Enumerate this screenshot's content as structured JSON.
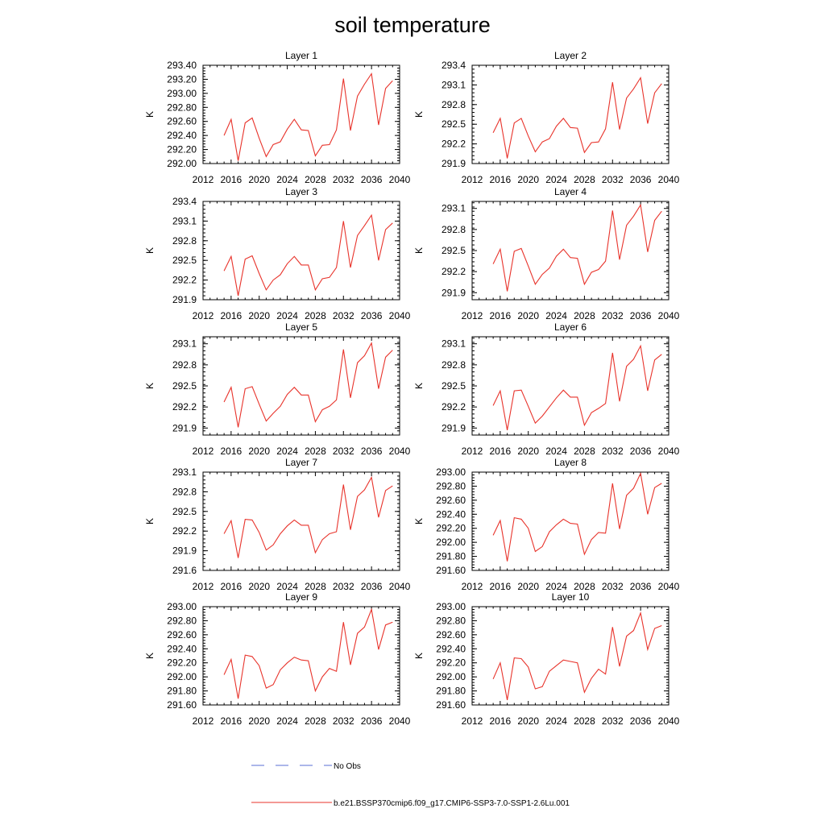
{
  "figure": {
    "title": "soil temperature",
    "legend": [
      {
        "label": "No Obs",
        "color": "#5a6fd6",
        "dash": "dashed"
      },
      {
        "label": "b.e21.BSSP370cmip6.f09_g17.CMIP6-SSP3-7.0-SSP1-2.6Lu.001",
        "color": "#e8332b",
        "dash": "solid"
      }
    ]
  },
  "chart_data": [
    {
      "type": "line",
      "title": "Layer 1",
      "ylabel": "K",
      "xlim": [
        2012,
        2040
      ],
      "ylim": [
        292.0,
        293.4
      ],
      "xticks": [
        2012,
        2016,
        2020,
        2024,
        2028,
        2032,
        2036,
        2040
      ],
      "yticks": [
        "292.00",
        "292.20",
        "292.40",
        "292.60",
        "292.80",
        "293.00",
        "293.20",
        "293.40"
      ],
      "series": [
        {
          "name": "b.e21.BSSP370cmip6.f09_g17.CMIP6-SSP3-7.0-SSP1-2.6Lu.001",
          "x": [
            2015,
            2016,
            2017,
            2018,
            2019,
            2020,
            2021,
            2022,
            2023,
            2024,
            2025,
            2026,
            2027,
            2028,
            2029,
            2030,
            2031,
            2032,
            2033,
            2034,
            2035,
            2036,
            2037,
            2038,
            2039
          ],
          "values": [
            292.4,
            292.63,
            292.04,
            292.58,
            292.65,
            292.36,
            292.1,
            292.27,
            292.31,
            292.49,
            292.63,
            292.48,
            292.47,
            292.11,
            292.26,
            292.27,
            292.48,
            293.21,
            292.47,
            292.96,
            293.13,
            293.28,
            292.55,
            293.07,
            293.18
          ]
        }
      ]
    },
    {
      "type": "line",
      "title": "Layer 2",
      "ylabel": "K",
      "xlim": [
        2012,
        2040
      ],
      "ylim": [
        291.9,
        293.4
      ],
      "xticks": [
        2012,
        2016,
        2020,
        2024,
        2028,
        2032,
        2036,
        2040
      ],
      "yticks": [
        "291.9",
        "292.2",
        "292.5",
        "292.8",
        "293.1",
        "293.4"
      ],
      "series": [
        {
          "name": "b.e21.BSSP370cmip6.f09_g17.CMIP6-SSP3-7.0-SSP1-2.6Lu.001",
          "x": [
            2015,
            2016,
            2017,
            2018,
            2019,
            2020,
            2021,
            2022,
            2023,
            2024,
            2025,
            2026,
            2027,
            2028,
            2029,
            2030,
            2031,
            2032,
            2033,
            2034,
            2035,
            2036,
            2037,
            2038,
            2039
          ],
          "values": [
            292.37,
            292.59,
            291.98,
            292.52,
            292.59,
            292.32,
            292.08,
            292.23,
            292.28,
            292.47,
            292.59,
            292.45,
            292.44,
            292.07,
            292.22,
            292.23,
            292.43,
            293.14,
            292.42,
            292.9,
            293.04,
            293.21,
            292.51,
            292.98,
            293.12
          ]
        }
      ]
    },
    {
      "type": "line",
      "title": "Layer 3",
      "ylabel": "K",
      "xlim": [
        2012,
        2040
      ],
      "ylim": [
        291.9,
        293.4
      ],
      "xticks": [
        2012,
        2016,
        2020,
        2024,
        2028,
        2032,
        2036,
        2040
      ],
      "yticks": [
        "291.9",
        "292.2",
        "292.5",
        "292.8",
        "293.1",
        "293.4"
      ],
      "series": [
        {
          "name": "b.e21.BSSP370cmip6.f09_g17.CMIP6-SSP3-7.0-SSP1-2.6Lu.001",
          "x": [
            2015,
            2016,
            2017,
            2018,
            2019,
            2020,
            2021,
            2022,
            2023,
            2024,
            2025,
            2026,
            2027,
            2028,
            2029,
            2030,
            2031,
            2032,
            2033,
            2034,
            2035,
            2036,
            2037,
            2038,
            2039
          ],
          "values": [
            292.34,
            292.56,
            291.96,
            292.52,
            292.57,
            292.3,
            292.05,
            292.2,
            292.28,
            292.45,
            292.56,
            292.43,
            292.43,
            292.05,
            292.22,
            292.24,
            292.39,
            293.1,
            292.39,
            292.88,
            293.03,
            293.19,
            292.5,
            292.97,
            293.07
          ]
        }
      ]
    },
    {
      "type": "line",
      "title": "Layer 4",
      "ylabel": "K",
      "xlim": [
        2012,
        2040
      ],
      "ylim": [
        291.8,
        293.2
      ],
      "xticks": [
        2012,
        2016,
        2020,
        2024,
        2028,
        2032,
        2036,
        2040
      ],
      "yticks": [
        "291.9",
        "292.2",
        "292.5",
        "292.8",
        "293.1"
      ],
      "series": [
        {
          "name": "b.e21.BSSP370cmip6.f09_g17.CMIP6-SSP3-7.0-SSP1-2.6Lu.001",
          "x": [
            2015,
            2016,
            2017,
            2018,
            2019,
            2020,
            2021,
            2022,
            2023,
            2024,
            2025,
            2026,
            2027,
            2028,
            2029,
            2030,
            2031,
            2032,
            2033,
            2034,
            2035,
            2036,
            2037,
            2038,
            2039
          ],
          "values": [
            292.31,
            292.52,
            291.92,
            292.49,
            292.53,
            292.28,
            292.02,
            292.16,
            292.25,
            292.42,
            292.52,
            292.4,
            292.39,
            292.02,
            292.19,
            292.23,
            292.35,
            293.07,
            292.37,
            292.86,
            292.99,
            293.15,
            292.48,
            292.93,
            293.06
          ]
        }
      ]
    },
    {
      "type": "line",
      "title": "Layer 5",
      "ylabel": "K",
      "xlim": [
        2012,
        2040
      ],
      "ylim": [
        291.8,
        293.2
      ],
      "xticks": [
        2012,
        2016,
        2020,
        2024,
        2028,
        2032,
        2036,
        2040
      ],
      "yticks": [
        "291.9",
        "292.2",
        "292.5",
        "292.8",
        "293.1"
      ],
      "series": [
        {
          "name": "b.e21.BSSP370cmip6.f09_g17.CMIP6-SSP3-7.0-SSP1-2.6Lu.001",
          "x": [
            2015,
            2016,
            2017,
            2018,
            2019,
            2020,
            2021,
            2022,
            2023,
            2024,
            2025,
            2026,
            2027,
            2028,
            2029,
            2030,
            2031,
            2032,
            2033,
            2034,
            2035,
            2036,
            2037,
            2038,
            2039
          ],
          "values": [
            292.27,
            292.48,
            291.91,
            292.46,
            292.49,
            292.24,
            292.0,
            292.11,
            292.21,
            292.38,
            292.48,
            292.37,
            292.37,
            291.99,
            292.16,
            292.21,
            292.3,
            293.02,
            292.33,
            292.83,
            292.93,
            293.11,
            292.46,
            292.91,
            293.01
          ]
        }
      ]
    },
    {
      "type": "line",
      "title": "Layer 6",
      "ylabel": "K",
      "xlim": [
        2012,
        2040
      ],
      "ylim": [
        291.8,
        293.2
      ],
      "xticks": [
        2012,
        2016,
        2020,
        2024,
        2028,
        2032,
        2036,
        2040
      ],
      "yticks": [
        "291.9",
        "292.2",
        "292.5",
        "292.8",
        "293.1"
      ],
      "series": [
        {
          "name": "b.e21.BSSP370cmip6.f09_g17.CMIP6-SSP3-7.0-SSP1-2.6Lu.001",
          "x": [
            2015,
            2016,
            2017,
            2018,
            2019,
            2020,
            2021,
            2022,
            2023,
            2024,
            2025,
            2026,
            2027,
            2028,
            2029,
            2030,
            2031,
            2032,
            2033,
            2034,
            2035,
            2036,
            2037,
            2038,
            2039
          ],
          "values": [
            292.22,
            292.43,
            291.87,
            292.43,
            292.44,
            292.21,
            291.97,
            292.07,
            292.2,
            292.33,
            292.44,
            292.34,
            292.34,
            291.94,
            292.12,
            292.18,
            292.25,
            292.97,
            292.28,
            292.78,
            292.88,
            293.07,
            292.43,
            292.87,
            292.95
          ]
        }
      ]
    },
    {
      "type": "line",
      "title": "Layer 7",
      "ylabel": "K",
      "xlim": [
        2012,
        2040
      ],
      "ylim": [
        291.6,
        293.1
      ],
      "xticks": [
        2012,
        2016,
        2020,
        2024,
        2028,
        2032,
        2036,
        2040
      ],
      "yticks": [
        "291.6",
        "291.9",
        "292.2",
        "292.5",
        "292.8",
        "293.1"
      ],
      "series": [
        {
          "name": "b.e21.BSSP370cmip6.f09_g17.CMIP6-SSP3-7.0-SSP1-2.6Lu.001",
          "x": [
            2015,
            2016,
            2017,
            2018,
            2019,
            2020,
            2021,
            2022,
            2023,
            2024,
            2025,
            2026,
            2027,
            2028,
            2029,
            2030,
            2031,
            2032,
            2033,
            2034,
            2035,
            2036,
            2037,
            2038,
            2039
          ],
          "values": [
            292.16,
            292.36,
            291.79,
            292.38,
            292.37,
            292.18,
            291.91,
            291.99,
            292.16,
            292.28,
            292.37,
            292.29,
            292.29,
            291.87,
            292.07,
            292.16,
            292.19,
            292.91,
            292.22,
            292.73,
            292.83,
            293.02,
            292.41,
            292.82,
            292.89
          ]
        }
      ]
    },
    {
      "type": "line",
      "title": "Layer 8",
      "ylabel": "K",
      "xlim": [
        2012,
        2040
      ],
      "ylim": [
        291.6,
        293.0
      ],
      "xticks": [
        2012,
        2016,
        2020,
        2024,
        2028,
        2032,
        2036,
        2040
      ],
      "yticks": [
        "291.60",
        "291.80",
        "292.00",
        "292.20",
        "292.40",
        "292.60",
        "292.80",
        "293.00"
      ],
      "series": [
        {
          "name": "b.e21.BSSP370cmip6.f09_g17.CMIP6-SSP3-7.0-SSP1-2.6Lu.001",
          "x": [
            2015,
            2016,
            2017,
            2018,
            2019,
            2020,
            2021,
            2022,
            2023,
            2024,
            2025,
            2026,
            2027,
            2028,
            2029,
            2030,
            2031,
            2032,
            2033,
            2034,
            2035,
            2036,
            2037,
            2038,
            2039
          ],
          "values": [
            292.1,
            292.31,
            291.73,
            292.35,
            292.33,
            292.2,
            291.87,
            291.94,
            292.15,
            292.25,
            292.33,
            292.27,
            292.26,
            291.83,
            292.04,
            292.14,
            292.13,
            292.84,
            292.19,
            292.67,
            292.77,
            292.98,
            292.4,
            292.78,
            292.84
          ]
        }
      ]
    },
    {
      "type": "line",
      "title": "Layer 9",
      "ylabel": "K",
      "xlim": [
        2012,
        2040
      ],
      "ylim": [
        291.6,
        293.0
      ],
      "xticks": [
        2012,
        2016,
        2020,
        2024,
        2028,
        2032,
        2036,
        2040
      ],
      "yticks": [
        "291.60",
        "291.80",
        "292.00",
        "292.20",
        "292.40",
        "292.60",
        "292.80",
        "293.00"
      ],
      "series": [
        {
          "name": "b.e21.BSSP370cmip6.f09_g17.CMIP6-SSP3-7.0-SSP1-2.6Lu.001",
          "x": [
            2015,
            2016,
            2017,
            2018,
            2019,
            2020,
            2021,
            2022,
            2023,
            2024,
            2025,
            2026,
            2027,
            2028,
            2029,
            2030,
            2031,
            2032,
            2033,
            2034,
            2035,
            2036,
            2037,
            2038,
            2039
          ],
          "values": [
            292.03,
            292.25,
            291.69,
            292.31,
            292.29,
            292.16,
            291.84,
            291.89,
            292.1,
            292.2,
            292.28,
            292.24,
            292.23,
            291.8,
            292.0,
            292.12,
            292.08,
            292.78,
            292.17,
            292.62,
            292.71,
            292.96,
            292.39,
            292.74,
            292.78
          ]
        }
      ]
    },
    {
      "type": "line",
      "title": "Layer 10",
      "ylabel": "K",
      "xlim": [
        2012,
        2040
      ],
      "ylim": [
        291.6,
        293.0
      ],
      "xticks": [
        2012,
        2016,
        2020,
        2024,
        2028,
        2032,
        2036,
        2040
      ],
      "yticks": [
        "291.60",
        "291.80",
        "292.00",
        "292.20",
        "292.40",
        "292.60",
        "292.80",
        "293.00"
      ],
      "series": [
        {
          "name": "b.e21.BSSP370cmip6.f09_g17.CMIP6-SSP3-7.0-SSP1-2.6Lu.001",
          "x": [
            2015,
            2016,
            2017,
            2018,
            2019,
            2020,
            2021,
            2022,
            2023,
            2024,
            2025,
            2026,
            2027,
            2028,
            2029,
            2030,
            2031,
            2032,
            2033,
            2034,
            2035,
            2036,
            2037,
            2038,
            2039
          ],
          "values": [
            291.97,
            292.2,
            291.67,
            292.27,
            292.26,
            292.14,
            291.83,
            291.86,
            292.08,
            292.16,
            292.24,
            292.22,
            292.2,
            291.78,
            291.98,
            292.11,
            292.04,
            292.71,
            292.15,
            292.58,
            292.66,
            292.91,
            292.39,
            292.69,
            292.73
          ]
        }
      ]
    }
  ]
}
